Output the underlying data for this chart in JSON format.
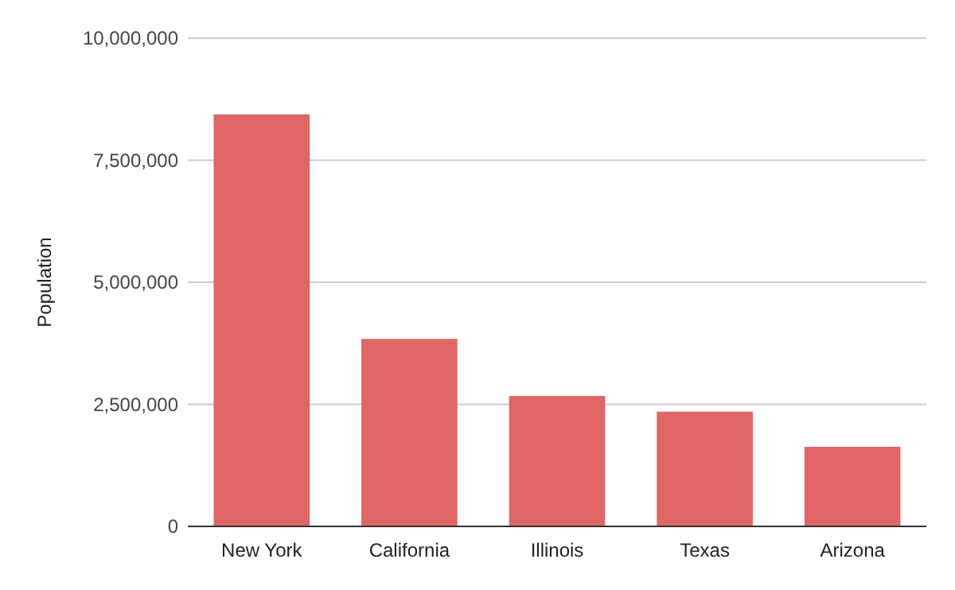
{
  "chart_data": {
    "type": "bar",
    "ylabel": "Population",
    "categories": [
      "New York",
      "California",
      "Illinois",
      "Texas",
      "Arizona"
    ],
    "series": [
      {
        "color": "#e06666",
        "values": [
          8440000,
          3840000,
          2670000,
          2350000,
          1630000
        ]
      }
    ],
    "ylim": [
      0,
      10000000
    ],
    "yticks": [
      {
        "value": 0,
        "label": "0"
      },
      {
        "value": 2500000,
        "label": "2,500,000"
      },
      {
        "value": 5000000,
        "label": "5,000,000"
      },
      {
        "value": 7500000,
        "label": "7,500,000"
      },
      {
        "value": 10000000,
        "label": "10,000,000"
      }
    ],
    "grid": "y"
  }
}
